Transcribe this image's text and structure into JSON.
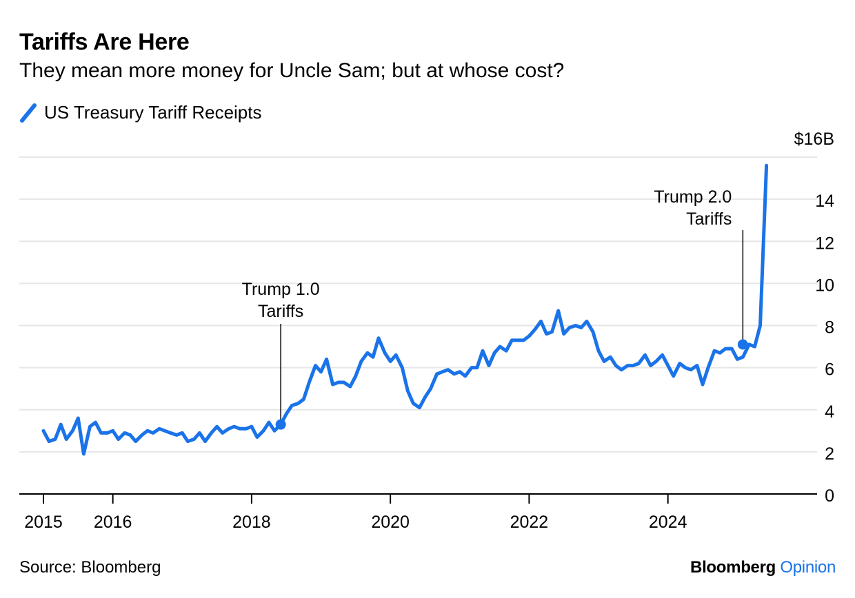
{
  "chart_data": {
    "type": "line",
    "title": "Tariffs Are Here",
    "subtitle": "They mean more money for Uncle Sam; but at whose cost?",
    "source": "Source: Bloomberg",
    "brand": {
      "name": "Bloomberg",
      "accent": "Opinion"
    },
    "colors": {
      "line": "#1a73e8",
      "grid": "#e6e6e6",
      "axis": "#000000"
    },
    "legend": {
      "position": "top-left"
    },
    "grid": true,
    "xlabel": "",
    "ylabel": "",
    "ylim": [
      0,
      16
    ],
    "xlim": [
      2015,
      2026.1
    ],
    "y_axis_side": "right",
    "y_ticks": [
      {
        "value": 0,
        "label": "0"
      },
      {
        "value": 2,
        "label": "2"
      },
      {
        "value": 4,
        "label": "4"
      },
      {
        "value": 6,
        "label": "6"
      },
      {
        "value": 8,
        "label": "8"
      },
      {
        "value": 10,
        "label": "10"
      },
      {
        "value": 12,
        "label": "12"
      },
      {
        "value": 14,
        "label": "14"
      },
      {
        "value": 16,
        "label": "$16B"
      }
    ],
    "x_ticks": [
      {
        "value": 2015,
        "label": "2015"
      },
      {
        "value": 2016,
        "label": "2016"
      },
      {
        "value": 2018,
        "label": "2018"
      },
      {
        "value": 2020,
        "label": "2020"
      },
      {
        "value": 2022,
        "label": "2022"
      },
      {
        "value": 2024,
        "label": "2024"
      }
    ],
    "series": [
      {
        "name": "US Treasury Tariff Receipts",
        "points": [
          [
            2015.0,
            3.0
          ],
          [
            2015.08,
            2.5
          ],
          [
            2015.17,
            2.6
          ],
          [
            2015.25,
            3.3
          ],
          [
            2015.33,
            2.6
          ],
          [
            2015.42,
            3.0
          ],
          [
            2015.5,
            3.6
          ],
          [
            2015.58,
            1.9
          ],
          [
            2015.67,
            3.2
          ],
          [
            2015.75,
            3.4
          ],
          [
            2015.83,
            2.9
          ],
          [
            2015.92,
            2.9
          ],
          [
            2016.0,
            3.0
          ],
          [
            2016.08,
            2.6
          ],
          [
            2016.17,
            2.9
          ],
          [
            2016.25,
            2.8
          ],
          [
            2016.33,
            2.5
          ],
          [
            2016.42,
            2.8
          ],
          [
            2016.5,
            3.0
          ],
          [
            2016.58,
            2.9
          ],
          [
            2016.67,
            3.1
          ],
          [
            2016.75,
            3.0
          ],
          [
            2016.83,
            2.9
          ],
          [
            2016.92,
            2.8
          ],
          [
            2017.0,
            2.9
          ],
          [
            2017.08,
            2.5
          ],
          [
            2017.17,
            2.6
          ],
          [
            2017.25,
            2.9
          ],
          [
            2017.33,
            2.5
          ],
          [
            2017.42,
            2.9
          ],
          [
            2017.5,
            3.2
          ],
          [
            2017.58,
            2.9
          ],
          [
            2017.67,
            3.1
          ],
          [
            2017.75,
            3.2
          ],
          [
            2017.83,
            3.1
          ],
          [
            2017.92,
            3.1
          ],
          [
            2018.0,
            3.2
          ],
          [
            2018.08,
            2.7
          ],
          [
            2018.17,
            3.0
          ],
          [
            2018.25,
            3.4
          ],
          [
            2018.33,
            3.0
          ],
          [
            2018.42,
            3.3
          ],
          [
            2018.5,
            3.8
          ],
          [
            2018.58,
            4.2
          ],
          [
            2018.67,
            4.3
          ],
          [
            2018.75,
            4.5
          ],
          [
            2018.83,
            5.3
          ],
          [
            2018.92,
            6.1
          ],
          [
            2019.0,
            5.8
          ],
          [
            2019.08,
            6.4
          ],
          [
            2019.17,
            5.2
          ],
          [
            2019.25,
            5.3
          ],
          [
            2019.33,
            5.3
          ],
          [
            2019.42,
            5.1
          ],
          [
            2019.5,
            5.6
          ],
          [
            2019.58,
            6.3
          ],
          [
            2019.67,
            6.7
          ],
          [
            2019.75,
            6.5
          ],
          [
            2019.83,
            7.4
          ],
          [
            2019.92,
            6.7
          ],
          [
            2020.0,
            6.3
          ],
          [
            2020.08,
            6.6
          ],
          [
            2020.17,
            6.0
          ],
          [
            2020.25,
            4.9
          ],
          [
            2020.33,
            4.3
          ],
          [
            2020.42,
            4.1
          ],
          [
            2020.5,
            4.6
          ],
          [
            2020.58,
            5.0
          ],
          [
            2020.67,
            5.7
          ],
          [
            2020.75,
            5.8
          ],
          [
            2020.83,
            5.9
          ],
          [
            2020.92,
            5.7
          ],
          [
            2021.0,
            5.8
          ],
          [
            2021.08,
            5.6
          ],
          [
            2021.17,
            6.0
          ],
          [
            2021.25,
            6.0
          ],
          [
            2021.33,
            6.8
          ],
          [
            2021.42,
            6.1
          ],
          [
            2021.5,
            6.7
          ],
          [
            2021.58,
            7.0
          ],
          [
            2021.67,
            6.8
          ],
          [
            2021.75,
            7.3
          ],
          [
            2021.83,
            7.3
          ],
          [
            2021.92,
            7.3
          ],
          [
            2022.0,
            7.5
          ],
          [
            2022.08,
            7.8
          ],
          [
            2022.17,
            8.2
          ],
          [
            2022.25,
            7.6
          ],
          [
            2022.33,
            7.7
          ],
          [
            2022.42,
            8.7
          ],
          [
            2022.5,
            7.6
          ],
          [
            2022.58,
            7.9
          ],
          [
            2022.67,
            8.0
          ],
          [
            2022.75,
            7.9
          ],
          [
            2022.83,
            8.2
          ],
          [
            2022.92,
            7.7
          ],
          [
            2023.0,
            6.8
          ],
          [
            2023.08,
            6.3
          ],
          [
            2023.17,
            6.5
          ],
          [
            2023.25,
            6.1
          ],
          [
            2023.33,
            5.9
          ],
          [
            2023.42,
            6.1
          ],
          [
            2023.5,
            6.1
          ],
          [
            2023.58,
            6.2
          ],
          [
            2023.67,
            6.6
          ],
          [
            2023.75,
            6.1
          ],
          [
            2023.83,
            6.3
          ],
          [
            2023.92,
            6.6
          ],
          [
            2024.0,
            6.1
          ],
          [
            2024.08,
            5.6
          ],
          [
            2024.17,
            6.2
          ],
          [
            2024.25,
            6.0
          ],
          [
            2024.33,
            5.9
          ],
          [
            2024.42,
            6.1
          ],
          [
            2024.5,
            5.2
          ],
          [
            2024.58,
            6.0
          ],
          [
            2024.67,
            6.8
          ],
          [
            2024.75,
            6.7
          ],
          [
            2024.83,
            6.9
          ],
          [
            2024.92,
            6.9
          ],
          [
            2025.0,
            6.4
          ],
          [
            2025.08,
            6.5
          ],
          [
            2025.17,
            7.1
          ],
          [
            2025.25,
            7.0
          ],
          [
            2025.33,
            8.0
          ],
          [
            2025.42,
            15.6
          ]
        ]
      }
    ],
    "annotations": [
      {
        "lines": [
          "Trump 1.0",
          "Tariffs"
        ],
        "x": 2018.42,
        "y": 3.3
      },
      {
        "lines": [
          "Trump 2.0",
          "Tariffs"
        ],
        "x": 2025.08,
        "y": 7.1
      }
    ]
  }
}
